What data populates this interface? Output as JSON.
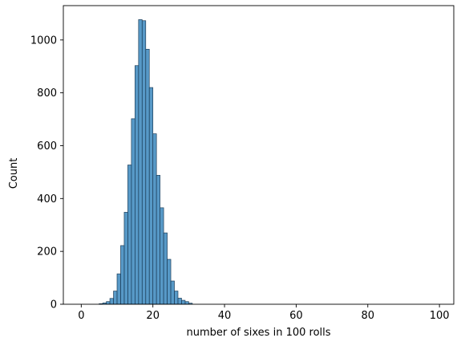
{
  "chart_data": {
    "type": "bar",
    "title": "",
    "xlabel": "number of sixes in 100 rolls",
    "ylabel": "Count",
    "xlim": [
      -5,
      104
    ],
    "ylim": [
      0,
      1130
    ],
    "grid": false,
    "xticks": [
      0,
      20,
      40,
      60,
      80,
      100
    ],
    "yticks": [
      0,
      200,
      400,
      600,
      800,
      1000
    ],
    "bins": {
      "start": 0,
      "width": 1,
      "counts": [
        0,
        0,
        0,
        0,
        0,
        2,
        5,
        10,
        22,
        50,
        115,
        222,
        348,
        527,
        702,
        903,
        1077,
        1073,
        965,
        820,
        645,
        488,
        365,
        270,
        170,
        88,
        50,
        23,
        15,
        10,
        4,
        0,
        0,
        0,
        0,
        0,
        0,
        0,
        0,
        0,
        0,
        0,
        0,
        0,
        0,
        0,
        0,
        0,
        0,
        0,
        0,
        0,
        0,
        0,
        0,
        0,
        0,
        0,
        0,
        0,
        0,
        0,
        0,
        0,
        0,
        0,
        0,
        0,
        0,
        0,
        0,
        0,
        0,
        0,
        0,
        0,
        0,
        0,
        0,
        0,
        0,
        0,
        0,
        0,
        0,
        0,
        0,
        0,
        0,
        0,
        0,
        0,
        0,
        0,
        0,
        0,
        0,
        0,
        0
      ]
    },
    "colors": {
      "bar_fill": "#1f77b4",
      "bar_edge": "#1f3f5a"
    }
  }
}
